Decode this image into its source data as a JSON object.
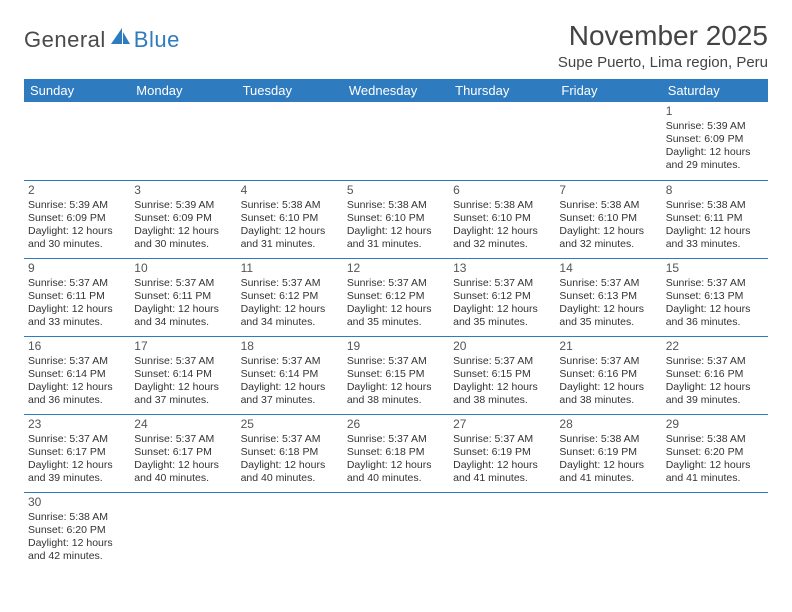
{
  "brand": {
    "part1": "General",
    "part2": "Blue"
  },
  "title": "November 2025",
  "location": "Supe Puerto, Lima region, Peru",
  "colors": {
    "header_bg": "#2f7bbf",
    "header_text": "#ffffff",
    "rule": "#2f7bbf",
    "text": "#333333"
  },
  "weekdays": [
    "Sunday",
    "Monday",
    "Tuesday",
    "Wednesday",
    "Thursday",
    "Friday",
    "Saturday"
  ],
  "weeks": [
    [
      null,
      null,
      null,
      null,
      null,
      null,
      {
        "day": "1",
        "sunrise": "Sunrise: 5:39 AM",
        "sunset": "Sunset: 6:09 PM",
        "daylight1": "Daylight: 12 hours",
        "daylight2": "and 29 minutes."
      }
    ],
    [
      {
        "day": "2",
        "sunrise": "Sunrise: 5:39 AM",
        "sunset": "Sunset: 6:09 PM",
        "daylight1": "Daylight: 12 hours",
        "daylight2": "and 30 minutes."
      },
      {
        "day": "3",
        "sunrise": "Sunrise: 5:39 AM",
        "sunset": "Sunset: 6:09 PM",
        "daylight1": "Daylight: 12 hours",
        "daylight2": "and 30 minutes."
      },
      {
        "day": "4",
        "sunrise": "Sunrise: 5:38 AM",
        "sunset": "Sunset: 6:10 PM",
        "daylight1": "Daylight: 12 hours",
        "daylight2": "and 31 minutes."
      },
      {
        "day": "5",
        "sunrise": "Sunrise: 5:38 AM",
        "sunset": "Sunset: 6:10 PM",
        "daylight1": "Daylight: 12 hours",
        "daylight2": "and 31 minutes."
      },
      {
        "day": "6",
        "sunrise": "Sunrise: 5:38 AM",
        "sunset": "Sunset: 6:10 PM",
        "daylight1": "Daylight: 12 hours",
        "daylight2": "and 32 minutes."
      },
      {
        "day": "7",
        "sunrise": "Sunrise: 5:38 AM",
        "sunset": "Sunset: 6:10 PM",
        "daylight1": "Daylight: 12 hours",
        "daylight2": "and 32 minutes."
      },
      {
        "day": "8",
        "sunrise": "Sunrise: 5:38 AM",
        "sunset": "Sunset: 6:11 PM",
        "daylight1": "Daylight: 12 hours",
        "daylight2": "and 33 minutes."
      }
    ],
    [
      {
        "day": "9",
        "sunrise": "Sunrise: 5:37 AM",
        "sunset": "Sunset: 6:11 PM",
        "daylight1": "Daylight: 12 hours",
        "daylight2": "and 33 minutes."
      },
      {
        "day": "10",
        "sunrise": "Sunrise: 5:37 AM",
        "sunset": "Sunset: 6:11 PM",
        "daylight1": "Daylight: 12 hours",
        "daylight2": "and 34 minutes."
      },
      {
        "day": "11",
        "sunrise": "Sunrise: 5:37 AM",
        "sunset": "Sunset: 6:12 PM",
        "daylight1": "Daylight: 12 hours",
        "daylight2": "and 34 minutes."
      },
      {
        "day": "12",
        "sunrise": "Sunrise: 5:37 AM",
        "sunset": "Sunset: 6:12 PM",
        "daylight1": "Daylight: 12 hours",
        "daylight2": "and 35 minutes."
      },
      {
        "day": "13",
        "sunrise": "Sunrise: 5:37 AM",
        "sunset": "Sunset: 6:12 PM",
        "daylight1": "Daylight: 12 hours",
        "daylight2": "and 35 minutes."
      },
      {
        "day": "14",
        "sunrise": "Sunrise: 5:37 AM",
        "sunset": "Sunset: 6:13 PM",
        "daylight1": "Daylight: 12 hours",
        "daylight2": "and 35 minutes."
      },
      {
        "day": "15",
        "sunrise": "Sunrise: 5:37 AM",
        "sunset": "Sunset: 6:13 PM",
        "daylight1": "Daylight: 12 hours",
        "daylight2": "and 36 minutes."
      }
    ],
    [
      {
        "day": "16",
        "sunrise": "Sunrise: 5:37 AM",
        "sunset": "Sunset: 6:14 PM",
        "daylight1": "Daylight: 12 hours",
        "daylight2": "and 36 minutes."
      },
      {
        "day": "17",
        "sunrise": "Sunrise: 5:37 AM",
        "sunset": "Sunset: 6:14 PM",
        "daylight1": "Daylight: 12 hours",
        "daylight2": "and 37 minutes."
      },
      {
        "day": "18",
        "sunrise": "Sunrise: 5:37 AM",
        "sunset": "Sunset: 6:14 PM",
        "daylight1": "Daylight: 12 hours",
        "daylight2": "and 37 minutes."
      },
      {
        "day": "19",
        "sunrise": "Sunrise: 5:37 AM",
        "sunset": "Sunset: 6:15 PM",
        "daylight1": "Daylight: 12 hours",
        "daylight2": "and 38 minutes."
      },
      {
        "day": "20",
        "sunrise": "Sunrise: 5:37 AM",
        "sunset": "Sunset: 6:15 PM",
        "daylight1": "Daylight: 12 hours",
        "daylight2": "and 38 minutes."
      },
      {
        "day": "21",
        "sunrise": "Sunrise: 5:37 AM",
        "sunset": "Sunset: 6:16 PM",
        "daylight1": "Daylight: 12 hours",
        "daylight2": "and 38 minutes."
      },
      {
        "day": "22",
        "sunrise": "Sunrise: 5:37 AM",
        "sunset": "Sunset: 6:16 PM",
        "daylight1": "Daylight: 12 hours",
        "daylight2": "and 39 minutes."
      }
    ],
    [
      {
        "day": "23",
        "sunrise": "Sunrise: 5:37 AM",
        "sunset": "Sunset: 6:17 PM",
        "daylight1": "Daylight: 12 hours",
        "daylight2": "and 39 minutes."
      },
      {
        "day": "24",
        "sunrise": "Sunrise: 5:37 AM",
        "sunset": "Sunset: 6:17 PM",
        "daylight1": "Daylight: 12 hours",
        "daylight2": "and 40 minutes."
      },
      {
        "day": "25",
        "sunrise": "Sunrise: 5:37 AM",
        "sunset": "Sunset: 6:18 PM",
        "daylight1": "Daylight: 12 hours",
        "daylight2": "and 40 minutes."
      },
      {
        "day": "26",
        "sunrise": "Sunrise: 5:37 AM",
        "sunset": "Sunset: 6:18 PM",
        "daylight1": "Daylight: 12 hours",
        "daylight2": "and 40 minutes."
      },
      {
        "day": "27",
        "sunrise": "Sunrise: 5:37 AM",
        "sunset": "Sunset: 6:19 PM",
        "daylight1": "Daylight: 12 hours",
        "daylight2": "and 41 minutes."
      },
      {
        "day": "28",
        "sunrise": "Sunrise: 5:38 AM",
        "sunset": "Sunset: 6:19 PM",
        "daylight1": "Daylight: 12 hours",
        "daylight2": "and 41 minutes."
      },
      {
        "day": "29",
        "sunrise": "Sunrise: 5:38 AM",
        "sunset": "Sunset: 6:20 PM",
        "daylight1": "Daylight: 12 hours",
        "daylight2": "and 41 minutes."
      }
    ],
    [
      {
        "day": "30",
        "sunrise": "Sunrise: 5:38 AM",
        "sunset": "Sunset: 6:20 PM",
        "daylight1": "Daylight: 12 hours",
        "daylight2": "and 42 minutes."
      },
      null,
      null,
      null,
      null,
      null,
      null
    ]
  ]
}
